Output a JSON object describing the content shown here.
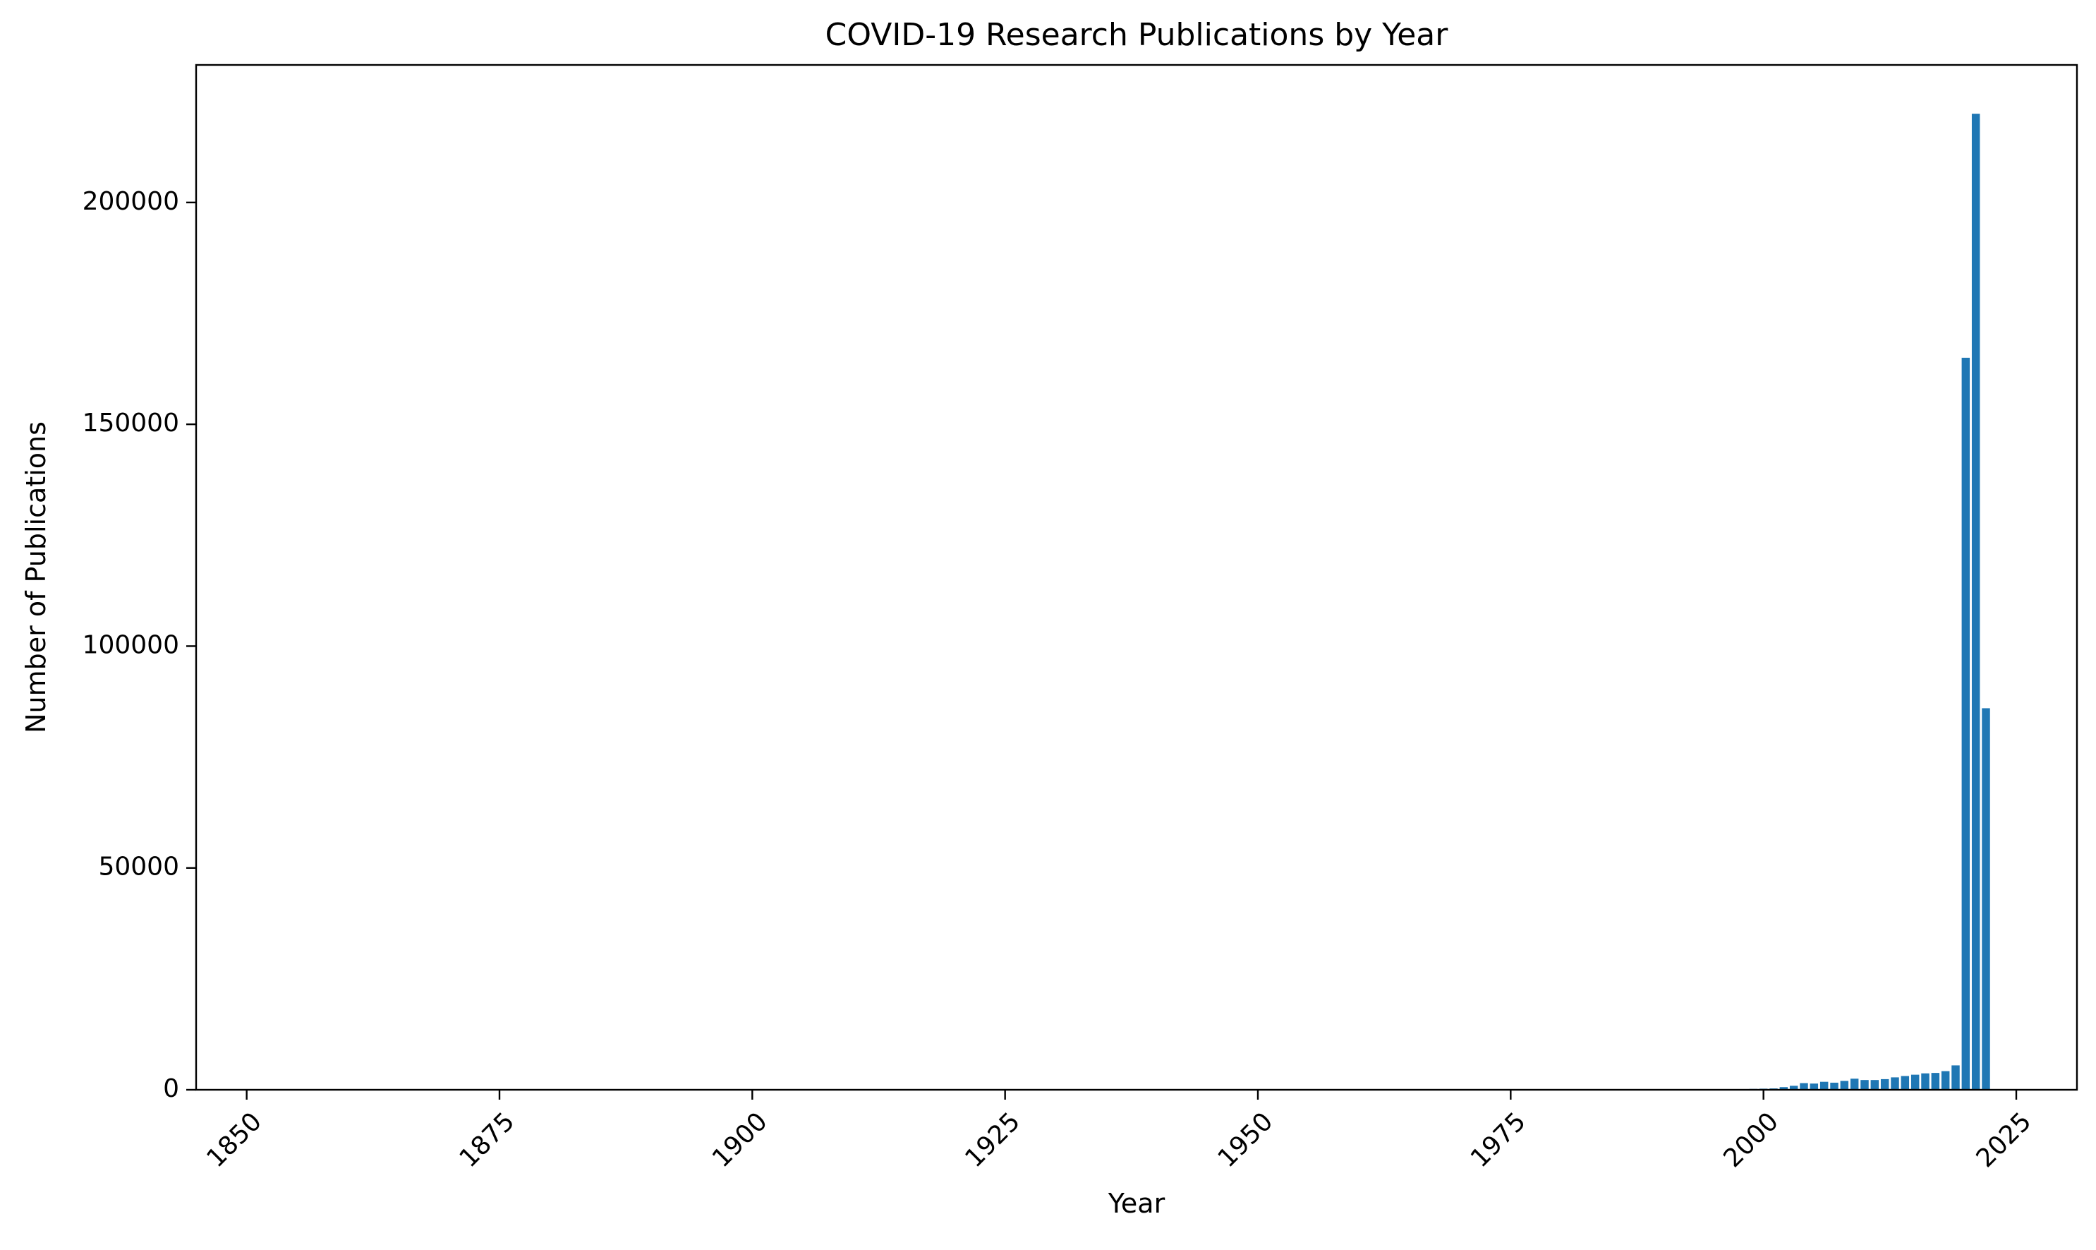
{
  "chart_data": {
    "type": "bar",
    "title": "COVID-19 Research Publications by Year",
    "xlabel": "Year",
    "ylabel": "Number of Publications",
    "xlim": [
      1845,
      2031
    ],
    "ylim": [
      0,
      231000
    ],
    "x_ticks": [
      1850,
      1875,
      1900,
      1925,
      1950,
      1975,
      2000,
      2025
    ],
    "x_tick_labels": [
      "1850",
      "1875",
      "1900",
      "1925",
      "1950",
      "1975",
      "2000",
      "2025"
    ],
    "y_ticks": [
      0,
      50000,
      100000,
      150000,
      200000
    ],
    "y_tick_labels": [
      "0",
      "50000",
      "100000",
      "150000",
      "200000"
    ],
    "grid": false,
    "bar_color": "#1f77b4",
    "x": [
      1850,
      1900,
      1950,
      1975,
      1990,
      1995,
      1998,
      1999,
      2000,
      2001,
      2002,
      2003,
      2004,
      2005,
      2006,
      2007,
      2008,
      2009,
      2010,
      2011,
      2012,
      2013,
      2014,
      2015,
      2016,
      2017,
      2018,
      2019,
      2020,
      2021,
      2022
    ],
    "values": [
      5,
      5,
      10,
      20,
      60,
      100,
      150,
      200,
      250,
      300,
      600,
      900,
      1500,
      1400,
      1800,
      1600,
      2000,
      2500,
      2200,
      2200,
      2400,
      2800,
      3100,
      3400,
      3700,
      3800,
      4200,
      5500,
      165000,
      220000,
      86000
    ]
  }
}
